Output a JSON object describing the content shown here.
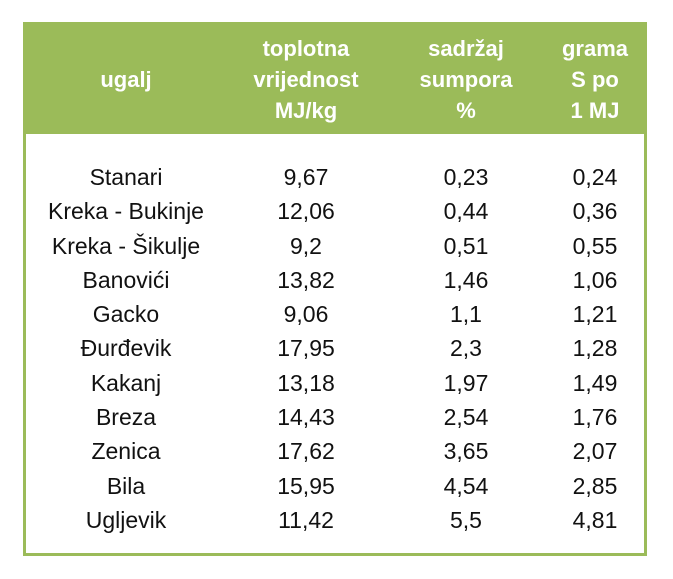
{
  "colors": {
    "accent": "#9bbb59",
    "header_text": "#ffffff",
    "body_text": "#111111"
  },
  "table": {
    "headers": [
      "ugalj",
      "toplotna\nvrijednost\nMJ/kg",
      "sadržaj\nsumpora\n%",
      "grama\nS po\n1 MJ"
    ],
    "rows": [
      [
        "Stanari",
        "9,67",
        "0,23",
        "0,24"
      ],
      [
        "Kreka - Bukinje",
        "12,06",
        "0,44",
        "0,36"
      ],
      [
        "Kreka - Šikulje",
        "9,2",
        "0,51",
        "0,55"
      ],
      [
        "Banovići",
        "13,82",
        "1,46",
        "1,06"
      ],
      [
        "Gacko",
        "9,06",
        "1,1",
        "1,21"
      ],
      [
        "Đurđevik",
        "17,95",
        "2,3",
        "1,28"
      ],
      [
        "Kakanj",
        "13,18",
        "1,97",
        "1,49"
      ],
      [
        "Breza",
        "14,43",
        "2,54",
        "1,76"
      ],
      [
        "Zenica",
        "17,62",
        "3,65",
        "2,07"
      ],
      [
        "Bila",
        "15,95",
        "4,54",
        "2,85"
      ],
      [
        "Ugljevik",
        "11,42",
        "5,5",
        "4,81"
      ]
    ]
  }
}
